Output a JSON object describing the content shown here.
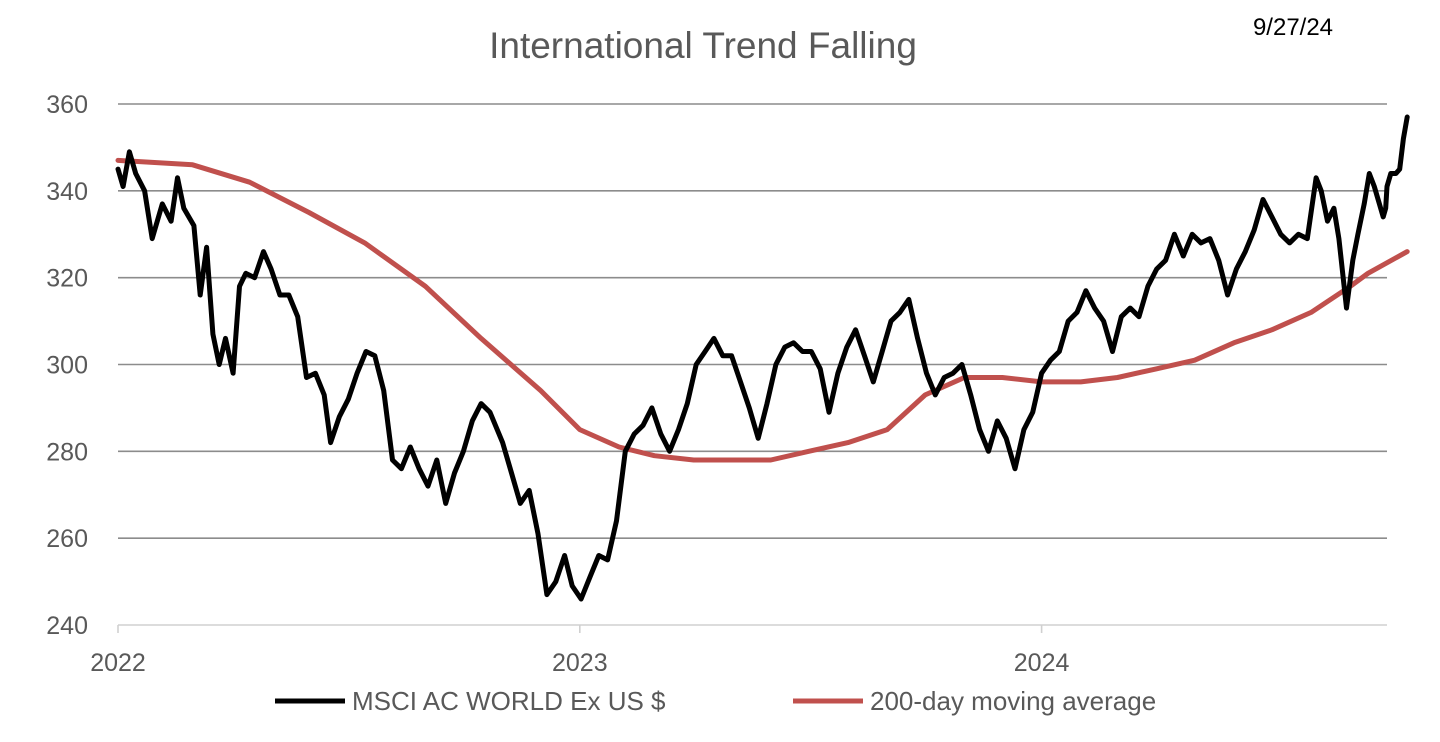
{
  "chart_data": {
    "type": "line",
    "title": "International Trend Falling",
    "date_label": "9/27/24",
    "xlabel": "",
    "ylabel": "",
    "ylim": [
      240,
      360
    ],
    "yticks": [
      240,
      260,
      280,
      300,
      320,
      340,
      360
    ],
    "xlim": [
      "2022-01-01",
      "2024-09-30"
    ],
    "xtick_labels": [
      "2022",
      "2023",
      "2024"
    ],
    "grid": true,
    "legend_position": "bottom",
    "series": [
      {
        "name": "MSCI AC WORLD Ex US $",
        "color": "#000000",
        "points": [
          [
            "2022-01-01",
            345
          ],
          [
            "2022-01-05",
            341
          ],
          [
            "2022-01-10",
            349
          ],
          [
            "2022-01-15",
            344
          ],
          [
            "2022-01-22",
            340
          ],
          [
            "2022-01-28",
            329
          ],
          [
            "2022-02-05",
            337
          ],
          [
            "2022-02-12",
            333
          ],
          [
            "2022-02-17",
            343
          ],
          [
            "2022-02-22",
            336
          ],
          [
            "2022-03-02",
            332
          ],
          [
            "2022-03-07",
            316
          ],
          [
            "2022-03-12",
            327
          ],
          [
            "2022-03-17",
            307
          ],
          [
            "2022-03-22",
            300
          ],
          [
            "2022-03-27",
            306
          ],
          [
            "2022-04-02",
            298
          ],
          [
            "2022-04-07",
            318
          ],
          [
            "2022-04-12",
            321
          ],
          [
            "2022-04-19",
            320
          ],
          [
            "2022-04-26",
            326
          ],
          [
            "2022-05-02",
            322
          ],
          [
            "2022-05-09",
            316
          ],
          [
            "2022-05-16",
            316
          ],
          [
            "2022-05-23",
            311
          ],
          [
            "2022-05-30",
            297
          ],
          [
            "2022-06-06",
            298
          ],
          [
            "2022-06-13",
            293
          ],
          [
            "2022-06-18",
            282
          ],
          [
            "2022-06-25",
            288
          ],
          [
            "2022-07-02",
            292
          ],
          [
            "2022-07-09",
            298
          ],
          [
            "2022-07-16",
            303
          ],
          [
            "2022-07-23",
            302
          ],
          [
            "2022-07-30",
            294
          ],
          [
            "2022-08-06",
            278
          ],
          [
            "2022-08-13",
            276
          ],
          [
            "2022-08-20",
            281
          ],
          [
            "2022-08-27",
            276
          ],
          [
            "2022-09-03",
            272
          ],
          [
            "2022-09-10",
            278
          ],
          [
            "2022-09-17",
            268
          ],
          [
            "2022-09-24",
            275
          ],
          [
            "2022-10-01",
            280
          ],
          [
            "2022-10-08",
            287
          ],
          [
            "2022-10-15",
            291
          ],
          [
            "2022-10-22",
            289
          ],
          [
            "2022-11-01",
            282
          ],
          [
            "2022-11-08",
            275
          ],
          [
            "2022-11-15",
            268
          ],
          [
            "2022-11-22",
            271
          ],
          [
            "2022-11-29",
            261
          ],
          [
            "2022-12-06",
            247
          ],
          [
            "2022-12-13",
            250
          ],
          [
            "2022-12-20",
            256
          ],
          [
            "2022-12-26",
            249
          ],
          [
            "2023-01-02",
            246
          ],
          [
            "2023-01-09",
            251
          ],
          [
            "2023-01-16",
            256
          ],
          [
            "2023-01-23",
            255
          ],
          [
            "2023-01-30",
            264
          ],
          [
            "2023-02-06",
            280
          ],
          [
            "2023-02-13",
            284
          ],
          [
            "2023-02-20",
            286
          ],
          [
            "2023-02-27",
            290
          ],
          [
            "2023-03-06",
            284
          ],
          [
            "2023-03-13",
            280
          ],
          [
            "2023-03-20",
            285
          ],
          [
            "2023-03-27",
            291
          ],
          [
            "2023-04-03",
            300
          ],
          [
            "2023-04-10",
            303
          ],
          [
            "2023-04-17",
            306
          ],
          [
            "2023-04-24",
            302
          ],
          [
            "2023-05-01",
            302
          ],
          [
            "2023-05-08",
            296
          ],
          [
            "2023-05-15",
            290
          ],
          [
            "2023-05-22",
            283
          ],
          [
            "2023-05-29",
            291
          ],
          [
            "2023-06-05",
            300
          ],
          [
            "2023-06-12",
            304
          ],
          [
            "2023-06-19",
            305
          ],
          [
            "2023-06-26",
            303
          ],
          [
            "2023-07-03",
            303
          ],
          [
            "2023-07-10",
            299
          ],
          [
            "2023-07-17",
            289
          ],
          [
            "2023-07-24",
            298
          ],
          [
            "2023-07-31",
            304
          ],
          [
            "2023-08-07",
            308
          ],
          [
            "2023-08-14",
            302
          ],
          [
            "2023-08-21",
            296
          ],
          [
            "2023-08-28",
            303
          ],
          [
            "2023-09-04",
            310
          ],
          [
            "2023-09-11",
            312
          ],
          [
            "2023-09-18",
            315
          ],
          [
            "2023-09-25",
            306
          ],
          [
            "2023-10-02",
            298
          ],
          [
            "2023-10-09",
            293
          ],
          [
            "2023-10-16",
            297
          ],
          [
            "2023-10-23",
            298
          ],
          [
            "2023-10-30",
            300
          ],
          [
            "2023-11-06",
            293
          ],
          [
            "2023-11-13",
            285
          ],
          [
            "2023-11-20",
            280
          ],
          [
            "2023-11-27",
            287
          ],
          [
            "2023-12-04",
            283
          ],
          [
            "2023-12-11",
            276
          ],
          [
            "2023-12-18",
            285
          ],
          [
            "2023-12-25",
            289
          ],
          [
            "2024-01-01",
            298
          ],
          [
            "2024-01-08",
            301
          ],
          [
            "2024-01-15",
            303
          ],
          [
            "2024-01-22",
            310
          ],
          [
            "2024-01-29",
            312
          ],
          [
            "2024-02-05",
            317
          ],
          [
            "2024-02-12",
            313
          ],
          [
            "2024-02-19",
            310
          ],
          [
            "2024-02-26",
            303
          ],
          [
            "2024-03-04",
            311
          ],
          [
            "2024-03-11",
            313
          ],
          [
            "2024-03-18",
            311
          ],
          [
            "2024-03-25",
            318
          ],
          [
            "2024-04-01",
            322
          ],
          [
            "2024-04-08",
            324
          ],
          [
            "2024-04-15",
            330
          ],
          [
            "2024-04-22",
            325
          ],
          [
            "2024-04-29",
            330
          ],
          [
            "2024-05-06",
            328
          ],
          [
            "2024-05-13",
            329
          ],
          [
            "2024-05-20",
            324
          ],
          [
            "2024-05-27",
            316
          ],
          [
            "2024-06-03",
            322
          ],
          [
            "2024-06-10",
            326
          ],
          [
            "2024-06-17",
            331
          ],
          [
            "2024-06-24",
            338
          ],
          [
            "2024-07-01",
            334
          ],
          [
            "2024-07-08",
            330
          ],
          [
            "2024-07-15",
            328
          ],
          [
            "2024-07-22",
            330
          ],
          [
            "2024-07-29",
            329
          ],
          [
            "2024-08-05",
            343
          ],
          [
            "2024-08-09",
            340
          ],
          [
            "2024-08-14",
            333
          ],
          [
            "2024-08-19",
            336
          ],
          [
            "2024-08-23",
            329
          ],
          [
            "2024-08-29",
            313
          ],
          [
            "2024-09-03",
            324
          ],
          [
            "2024-09-07",
            330
          ],
          [
            "2024-09-12",
            337
          ],
          [
            "2024-09-16",
            344
          ],
          [
            "2024-09-20",
            341
          ],
          [
            "2024-09-24",
            337
          ],
          [
            "2024-09-27",
            334
          ],
          [
            "2024-09-29",
            336
          ],
          [
            "2024-09-30",
            341
          ],
          [
            "2024-10-03",
            344
          ],
          [
            "2024-10-07",
            344
          ],
          [
            "2024-10-10",
            345
          ],
          [
            "2024-10-13",
            352
          ],
          [
            "2024-10-16",
            357
          ]
        ]
      },
      {
        "name": "200-day moving average",
        "color": "#c0504d",
        "points": [
          [
            "2022-01-01",
            347
          ],
          [
            "2022-03-01",
            346
          ],
          [
            "2022-04-15",
            342
          ],
          [
            "2022-06-01",
            335
          ],
          [
            "2022-07-15",
            328
          ],
          [
            "2022-09-01",
            318
          ],
          [
            "2022-10-15",
            306
          ],
          [
            "2022-12-01",
            294
          ],
          [
            "2023-01-01",
            285
          ],
          [
            "2023-02-01",
            281
          ],
          [
            "2023-03-01",
            279
          ],
          [
            "2023-04-01",
            278
          ],
          [
            "2023-05-01",
            278
          ],
          [
            "2023-06-01",
            278
          ],
          [
            "2023-07-01",
            280
          ],
          [
            "2023-08-01",
            282
          ],
          [
            "2023-09-01",
            285
          ],
          [
            "2023-10-01",
            293
          ],
          [
            "2023-11-01",
            297
          ],
          [
            "2023-12-01",
            297
          ],
          [
            "2024-01-01",
            296
          ],
          [
            "2024-02-01",
            296
          ],
          [
            "2024-03-01",
            297
          ],
          [
            "2024-04-01",
            299
          ],
          [
            "2024-05-01",
            301
          ],
          [
            "2024-06-01",
            305
          ],
          [
            "2024-07-01",
            308
          ],
          [
            "2024-08-01",
            312
          ],
          [
            "2024-09-01",
            318
          ],
          [
            "2024-09-15",
            321
          ],
          [
            "2024-10-16",
            326
          ]
        ]
      }
    ]
  }
}
